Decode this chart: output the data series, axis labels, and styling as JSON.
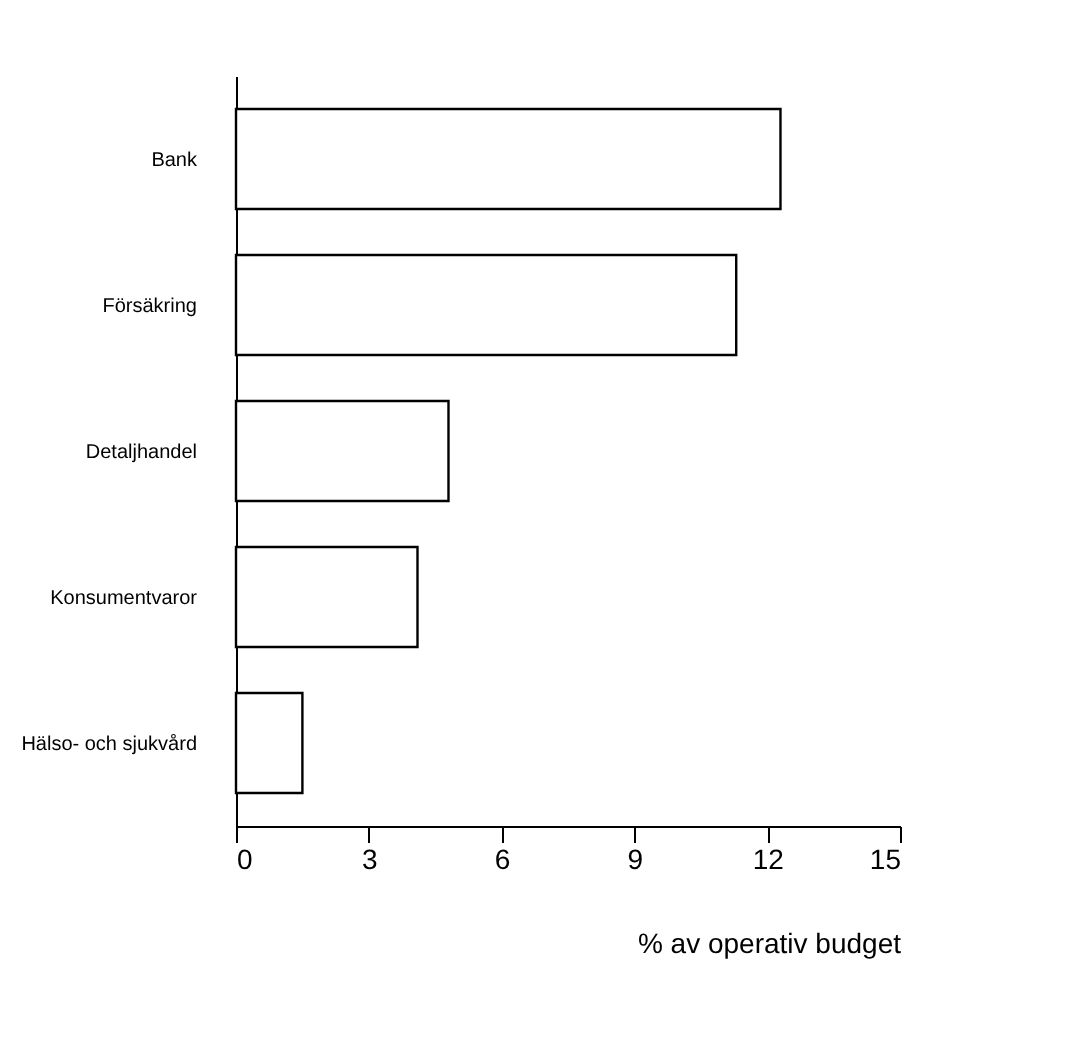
{
  "chart_data": {
    "type": "bar",
    "orientation": "horizontal",
    "categories": [
      "Bank",
      "Försäkring",
      "Detaljhandel",
      "Konsumentvaror",
      "Hälso- och sjukvård"
    ],
    "values": [
      12.3,
      11.3,
      4.8,
      4.1,
      1.5
    ],
    "color": "#ffffff",
    "xlabel": "% av operativ budget",
    "xlim": [
      0,
      15
    ],
    "xticks": [
      0,
      3,
      6,
      9,
      12,
      15
    ]
  }
}
